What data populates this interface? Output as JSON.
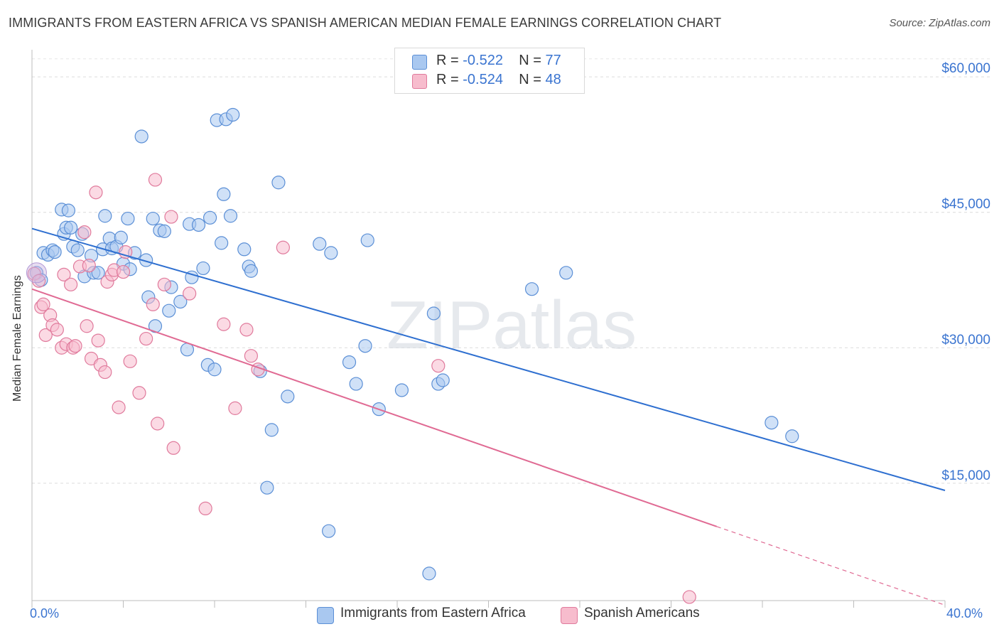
{
  "title": "IMMIGRANTS FROM EASTERN AFRICA VS SPANISH AMERICAN MEDIAN FEMALE EARNINGS CORRELATION CHART",
  "source": "Source: ZipAtlas.com",
  "watermark": "ZIPatlas",
  "stats": [
    {
      "r_label": "R =",
      "r": "-0.522",
      "n_label": "N =",
      "n": "77",
      "color": "#a9c8f0",
      "stroke": "#5b8fd6"
    },
    {
      "r_label": "R =",
      "r": "-0.524",
      "n_label": "N =",
      "n": "48",
      "color": "#f7bccd",
      "stroke": "#e07a9c"
    }
  ],
  "chart_data": {
    "type": "scatter",
    "xlabel": "",
    "ylabel": "Median Female Earnings",
    "xlim": [
      0,
      40
    ],
    "ylim": [
      2000,
      63000
    ],
    "x_tick_labels": [
      {
        "value": 0,
        "label": "0.0%"
      },
      {
        "value": 40,
        "label": "40.0%"
      }
    ],
    "y_tick_labels": [
      {
        "value": 60000,
        "label": "$60,000"
      },
      {
        "value": 45000,
        "label": "$45,000"
      },
      {
        "value": 30000,
        "label": "$30,000"
      },
      {
        "value": 15000,
        "label": "$15,000"
      }
    ],
    "grid": true,
    "legend_position": "bottom-center",
    "series": [
      {
        "name": "Immigrants from Eastern Africa",
        "color": "#a9c8f0",
        "stroke": "#5b8fd6",
        "line_color": "#2e6fd0",
        "trend": {
          "x0": 0,
          "y0": 43200,
          "x1": 40,
          "y1": 14200
        },
        "points": [
          [
            0.2,
            38300
          ],
          [
            0.4,
            37500
          ],
          [
            0.5,
            40500
          ],
          [
            0.7,
            40300
          ],
          [
            0.9,
            40800
          ],
          [
            1.0,
            40600
          ],
          [
            1.3,
            45300
          ],
          [
            1.4,
            42600
          ],
          [
            1.5,
            43300
          ],
          [
            1.6,
            45200
          ],
          [
            1.7,
            43300
          ],
          [
            1.8,
            41200
          ],
          [
            2.0,
            40800
          ],
          [
            2.2,
            42600
          ],
          [
            2.3,
            37900
          ],
          [
            2.6,
            40200
          ],
          [
            2.7,
            38300
          ],
          [
            2.9,
            38300
          ],
          [
            3.1,
            40900
          ],
          [
            3.2,
            44600
          ],
          [
            3.4,
            42100
          ],
          [
            3.5,
            41000
          ],
          [
            3.7,
            41200
          ],
          [
            3.9,
            42200
          ],
          [
            4.0,
            39300
          ],
          [
            4.2,
            44300
          ],
          [
            4.3,
            38700
          ],
          [
            4.5,
            40500
          ],
          [
            4.8,
            53400
          ],
          [
            5.0,
            39700
          ],
          [
            5.1,
            35600
          ],
          [
            5.3,
            44300
          ],
          [
            5.4,
            32400
          ],
          [
            5.6,
            43000
          ],
          [
            5.8,
            42900
          ],
          [
            6.0,
            34100
          ],
          [
            6.1,
            36700
          ],
          [
            6.5,
            35100
          ],
          [
            6.8,
            29800
          ],
          [
            6.9,
            43700
          ],
          [
            7.0,
            37800
          ],
          [
            7.3,
            43600
          ],
          [
            7.5,
            38800
          ],
          [
            7.7,
            28100
          ],
          [
            7.8,
            44400
          ],
          [
            8.0,
            27600
          ],
          [
            8.1,
            55200
          ],
          [
            8.3,
            41600
          ],
          [
            8.4,
            47000
          ],
          [
            8.5,
            55300
          ],
          [
            8.7,
            44600
          ],
          [
            8.8,
            55800
          ],
          [
            9.3,
            40900
          ],
          [
            9.5,
            39000
          ],
          [
            9.6,
            38500
          ],
          [
            10.0,
            27400
          ],
          [
            10.5,
            20900
          ],
          [
            10.8,
            48300
          ],
          [
            10.3,
            14500
          ],
          [
            11.2,
            24600
          ],
          [
            12.6,
            41500
          ],
          [
            13.1,
            40500
          ],
          [
            13.0,
            9700
          ],
          [
            13.9,
            28400
          ],
          [
            14.2,
            26000
          ],
          [
            14.6,
            30200
          ],
          [
            14.7,
            41900
          ],
          [
            15.2,
            23200
          ],
          [
            16.2,
            25300
          ],
          [
            17.6,
            33800
          ],
          [
            17.4,
            5000
          ],
          [
            17.8,
            26000
          ],
          [
            18.0,
            26400
          ],
          [
            21.9,
            36500
          ],
          [
            23.4,
            38300
          ],
          [
            32.4,
            21700
          ],
          [
            33.3,
            20200
          ]
        ]
      },
      {
        "name": "Spanish Americans",
        "color": "#f7bccd",
        "stroke": "#e07a9c",
        "line_color": "#e06a93",
        "trend": {
          "x0": 0,
          "y0": 36500,
          "x1": 30.0,
          "y1": 10200,
          "dash_x1": 40,
          "dash_y1": 1500
        },
        "points": [
          [
            0.1,
            38200
          ],
          [
            0.3,
            37400
          ],
          [
            0.4,
            34500
          ],
          [
            0.5,
            34800
          ],
          [
            0.6,
            31400
          ],
          [
            0.8,
            33600
          ],
          [
            0.9,
            32500
          ],
          [
            1.1,
            32000
          ],
          [
            1.3,
            30000
          ],
          [
            1.4,
            38100
          ],
          [
            1.5,
            30400
          ],
          [
            1.7,
            37000
          ],
          [
            1.8,
            30000
          ],
          [
            1.9,
            30200
          ],
          [
            2.1,
            39000
          ],
          [
            2.3,
            42800
          ],
          [
            2.4,
            32400
          ],
          [
            2.6,
            28800
          ],
          [
            2.8,
            47200
          ],
          [
            2.9,
            30800
          ],
          [
            3.0,
            28100
          ],
          [
            3.2,
            27300
          ],
          [
            3.3,
            37300
          ],
          [
            3.5,
            38100
          ],
          [
            3.6,
            38600
          ],
          [
            3.8,
            23400
          ],
          [
            4.1,
            40600
          ],
          [
            4.3,
            28500
          ],
          [
            4.7,
            25000
          ],
          [
            5.0,
            31000
          ],
          [
            5.3,
            34800
          ],
          [
            5.4,
            48600
          ],
          [
            5.5,
            21600
          ],
          [
            5.8,
            37000
          ],
          [
            6.1,
            44500
          ],
          [
            6.2,
            18900
          ],
          [
            6.9,
            36000
          ],
          [
            7.6,
            12200
          ],
          [
            8.4,
            32600
          ],
          [
            8.9,
            23300
          ],
          [
            9.4,
            32000
          ],
          [
            9.6,
            29100
          ],
          [
            9.9,
            27600
          ],
          [
            11.0,
            41100
          ],
          [
            17.8,
            28000
          ],
          [
            28.8,
            2400
          ],
          [
            2.5,
            39100
          ],
          [
            4.0,
            38400
          ]
        ]
      }
    ]
  }
}
